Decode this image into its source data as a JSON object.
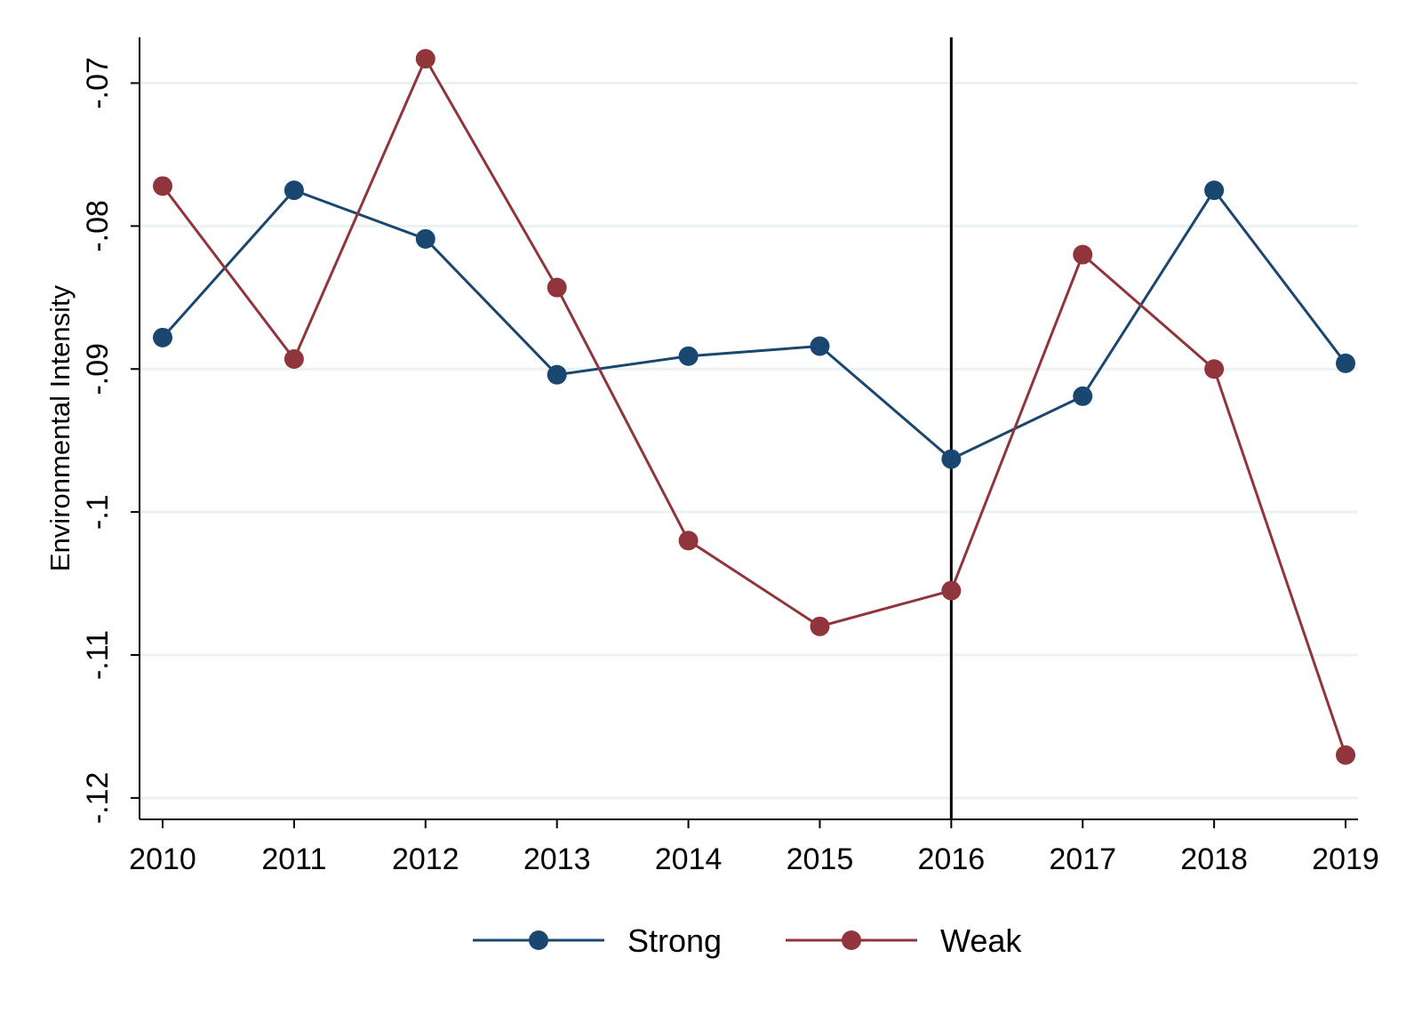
{
  "chart_data": {
    "type": "line",
    "title": "",
    "xlabel": "",
    "ylabel": "Environmental Intensity",
    "x": [
      2010,
      2011,
      2012,
      2013,
      2014,
      2015,
      2016,
      2017,
      2018,
      2019
    ],
    "x_tick_labels": [
      "2010",
      "2011",
      "2012",
      "2013",
      "2014",
      "2015",
      "2016",
      "2017",
      "2018",
      "2019"
    ],
    "ylim": [
      -0.1215,
      -0.0668
    ],
    "y_ticks": [
      -0.07,
      -0.08,
      -0.09,
      -0.1,
      -0.11,
      -0.12
    ],
    "y_tick_labels": [
      "-.07",
      "-.08",
      "-.09",
      "-.1",
      "-.11",
      "-.12"
    ],
    "grid": true,
    "vertical_reference_line": {
      "x": 2016,
      "color": "#000000"
    },
    "legend": {
      "position": "bottom",
      "entries": [
        "Strong",
        "Weak"
      ]
    },
    "series": [
      {
        "name": "Strong",
        "color": "#1a476f",
        "values": [
          -0.0878,
          -0.0775,
          -0.0809,
          -0.0904,
          -0.0891,
          -0.0884,
          -0.0963,
          -0.0919,
          -0.0775,
          -0.0896
        ]
      },
      {
        "name": "Weak",
        "color": "#90353b",
        "values": [
          -0.0772,
          -0.0893,
          -0.0683,
          -0.0843,
          -0.102,
          -0.108,
          -0.1055,
          -0.082,
          -0.09,
          -0.117
        ]
      }
    ]
  }
}
